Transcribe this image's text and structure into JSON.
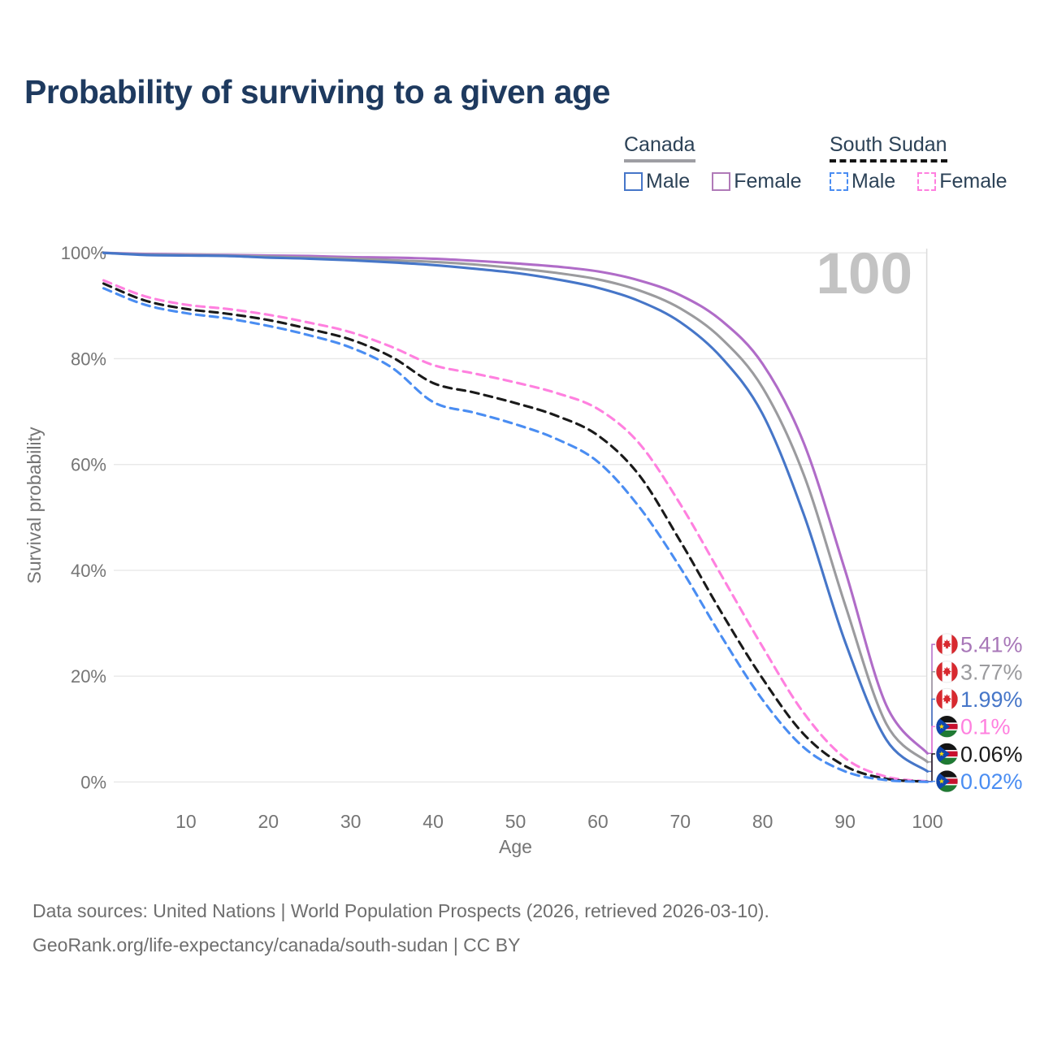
{
  "title": "Probability of surviving to a given age",
  "legend": {
    "groups": [
      {
        "country": "Canada",
        "line_style": "solid",
        "underline_color": "#9e9ea3",
        "items": [
          {
            "label": "Male",
            "color": "#4676c8"
          },
          {
            "label": "Female",
            "color": "#b07ab8"
          }
        ]
      },
      {
        "country": "South Sudan",
        "line_style": "dashed",
        "underline_color": "#151515",
        "items": [
          {
            "label": "Male",
            "color": "#4a8df2"
          },
          {
            "label": "Female",
            "color": "#ff80df"
          }
        ]
      }
    ]
  },
  "chart_data": {
    "type": "line",
    "title": "Probability of surviving to a given age",
    "xlabel": "Age",
    "ylabel": "Survival probability",
    "xlim": [
      0,
      100
    ],
    "ylim": [
      0,
      100
    ],
    "grid": "horizontal",
    "legend_position": "top-right",
    "x_ticks": [
      10,
      20,
      30,
      40,
      50,
      60,
      70,
      80,
      90,
      100
    ],
    "y_ticks": [
      0,
      20,
      40,
      60,
      80,
      100
    ],
    "y_tick_labels": [
      "0%",
      "20%",
      "40%",
      "60%",
      "80%",
      "100%"
    ],
    "hover_age_label": "100",
    "ages": [
      0,
      5,
      10,
      15,
      20,
      25,
      30,
      35,
      40,
      45,
      50,
      55,
      60,
      65,
      70,
      75,
      80,
      85,
      90,
      95,
      100
    ],
    "series": [
      {
        "name": "Canada Female",
        "country": "Canada",
        "sex": "Female",
        "style": "solid",
        "color": "#b06cc8",
        "label_color": "#a877b8",
        "end_label": "5.41%",
        "flag": "canada",
        "values": [
          100,
          99.8,
          99.7,
          99.6,
          99.5,
          99.4,
          99.2,
          99.1,
          98.9,
          98.5,
          98.0,
          97.4,
          96.5,
          94.8,
          92.0,
          87.2,
          79.0,
          64.0,
          40.0,
          14.5,
          5.41
        ]
      },
      {
        "name": "Canada Both sexes",
        "country": "Canada",
        "sex": "Both",
        "style": "solid",
        "color": "#9b9b9e",
        "label_color": "#9b9b9e",
        "end_label": "3.77%",
        "flag": "canada",
        "values": [
          100,
          99.7,
          99.6,
          99.5,
          99.3,
          99.1,
          98.9,
          98.6,
          98.3,
          97.8,
          97.1,
          96.2,
          95.0,
          92.9,
          89.5,
          83.8,
          74.5,
          58.0,
          33.5,
          11.0,
          3.77
        ]
      },
      {
        "name": "Canada Male",
        "country": "Canada",
        "sex": "Male",
        "style": "solid",
        "color": "#4676c8",
        "label_color": "#4676c8",
        "end_label": "1.99%",
        "flag": "canada",
        "values": [
          100,
          99.6,
          99.5,
          99.4,
          99.1,
          98.9,
          98.6,
          98.2,
          97.7,
          97.0,
          96.2,
          95.0,
          93.4,
          90.9,
          86.9,
          80.2,
          69.5,
          50.5,
          26.5,
          8.0,
          1.99
        ]
      },
      {
        "name": "South Sudan Female",
        "country": "South Sudan",
        "sex": "Female",
        "style": "dashed",
        "color": "#ff80df",
        "label_color": "#ff80df",
        "end_label": "0.1%",
        "flag": "south-sudan",
        "values": [
          94.8,
          91.8,
          90.2,
          89.4,
          88.3,
          86.8,
          85.0,
          82.2,
          78.8,
          77.2,
          75.5,
          73.5,
          70.5,
          64.0,
          52.5,
          39.0,
          25.5,
          13.0,
          4.5,
          1.0,
          0.1
        ]
      },
      {
        "name": "South Sudan Both sexes",
        "country": "South Sudan",
        "sex": "Both",
        "style": "dashed",
        "color": "#1a1a1a",
        "label_color": "#1a1a1a",
        "end_label": "0.06%",
        "flag": "south-sudan",
        "values": [
          94.2,
          91.0,
          89.4,
          88.5,
          87.3,
          85.6,
          83.6,
          80.3,
          75.4,
          73.6,
          71.6,
          69.2,
          65.5,
          58.0,
          45.5,
          32.0,
          19.5,
          9.0,
          3.0,
          0.6,
          0.06
        ]
      },
      {
        "name": "South Sudan Male",
        "country": "South Sudan",
        "sex": "Male",
        "style": "dashed",
        "color": "#4a8df2",
        "label_color": "#4a8df2",
        "end_label": "0.02%",
        "flag": "south-sudan",
        "values": [
          93.3,
          90.2,
          88.6,
          87.6,
          86.2,
          84.4,
          82.1,
          78.3,
          71.8,
          69.8,
          67.6,
          64.8,
          60.5,
          52.0,
          40.5,
          27.5,
          15.5,
          6.5,
          2.0,
          0.35,
          0.02
        ]
      }
    ],
    "flag_colors": {
      "canada_red": "#d8292f",
      "ss_black": "#141414",
      "ss_red": "#c8102e",
      "ss_green": "#1f7a33",
      "ss_blue": "#0f47af",
      "ss_star": "#fcdd09",
      "ss_white": "#ffffff"
    }
  },
  "watermark": "100",
  "footer": {
    "line1": "Data sources: United Nations | World Population Prospects (2026, retrieved 2026-03-10).",
    "line2": "GeoRank.org/life-expectancy/canada/south-sudan | CC BY"
  }
}
